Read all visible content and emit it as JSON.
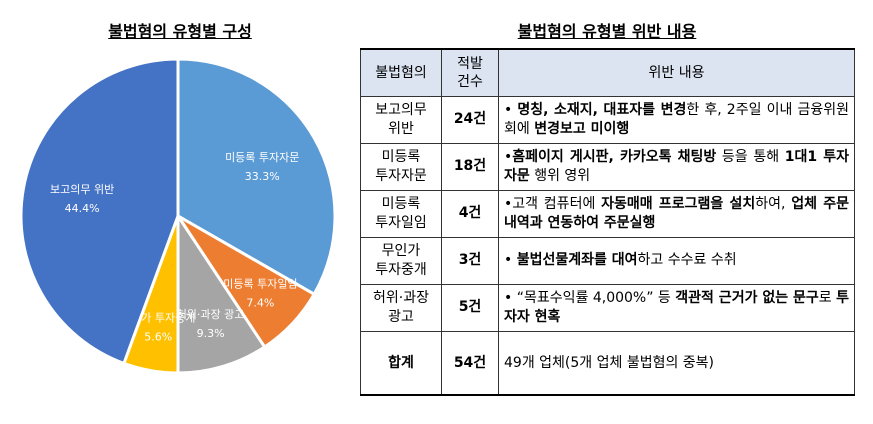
{
  "chart_data": {
    "type": "pie",
    "title": "불법혐의 유형별 구성",
    "categories": [
      "미등록 투자자문",
      "미등록 투자일임",
      "허위·과장 광고",
      "무인가 투자중개",
      "보고의무 위반"
    ],
    "values": [
      33.3,
      7.4,
      9.3,
      5.6,
      44.4
    ],
    "value_labels": [
      "33.3%",
      "7.4%",
      "9.3%",
      "5.6%",
      "44.4%"
    ],
    "colors": [
      "#5b9bd5",
      "#ed7d31",
      "#a5a5a5",
      "#ffc000",
      "#4472c4"
    ]
  },
  "table": {
    "title": "불법혐의 유형별 위반 내용",
    "header": [
      "불법혐의",
      "적발\n건수",
      "위반 내용"
    ],
    "rows": [
      {
        "name": "보고의무\n위반",
        "count": "24건",
        "content": [
          {
            "t": "• "
          },
          {
            "t": "명칭, 소재지, 대표자를 변경",
            "b": true
          },
          {
            "t": "한 후, 2주일 이내 금융위원회에 "
          },
          {
            "t": "변경보고 미이행",
            "b": true
          }
        ]
      },
      {
        "name": "미등록\n투자자문",
        "count": "18건",
        "content": [
          {
            "t": "•"
          },
          {
            "t": "홈페이지 게시판, 카카오톡 채팅방",
            "b": true
          },
          {
            "t": " 등을 통해 "
          },
          {
            "t": "1대1 투자자문",
            "b": true
          },
          {
            "t": " 행위 영위"
          }
        ]
      },
      {
        "name": "미등록\n투자일임",
        "count": "4건",
        "content": [
          {
            "t": "•고객 컴퓨터에 "
          },
          {
            "t": "자동매매 프로그램을 설치",
            "b": true
          },
          {
            "t": "하여, "
          },
          {
            "t": "업체 주문내역과 연동하여 주문실행",
            "b": true
          }
        ]
      },
      {
        "name": "무인가\n투자중개",
        "count": "3건",
        "content": [
          {
            "t": "• "
          },
          {
            "t": "불법선물계좌를 대여",
            "b": true
          },
          {
            "t": "하고 수수료 수취"
          }
        ]
      },
      {
        "name": "허위·과장\n광고",
        "count": "5건",
        "content": [
          {
            "t": "• “목표수익률 4,000%” 등 "
          },
          {
            "t": "객관적 근거가 없는 문구",
            "b": true
          },
          {
            "t": "로 "
          },
          {
            "t": "투자자 현혹",
            "b": true
          }
        ]
      },
      {
        "name": "합계",
        "count": "54건",
        "content": [
          {
            "t": "49개 업체(5개 업체 불법혐의 중복)"
          }
        ]
      }
    ]
  }
}
